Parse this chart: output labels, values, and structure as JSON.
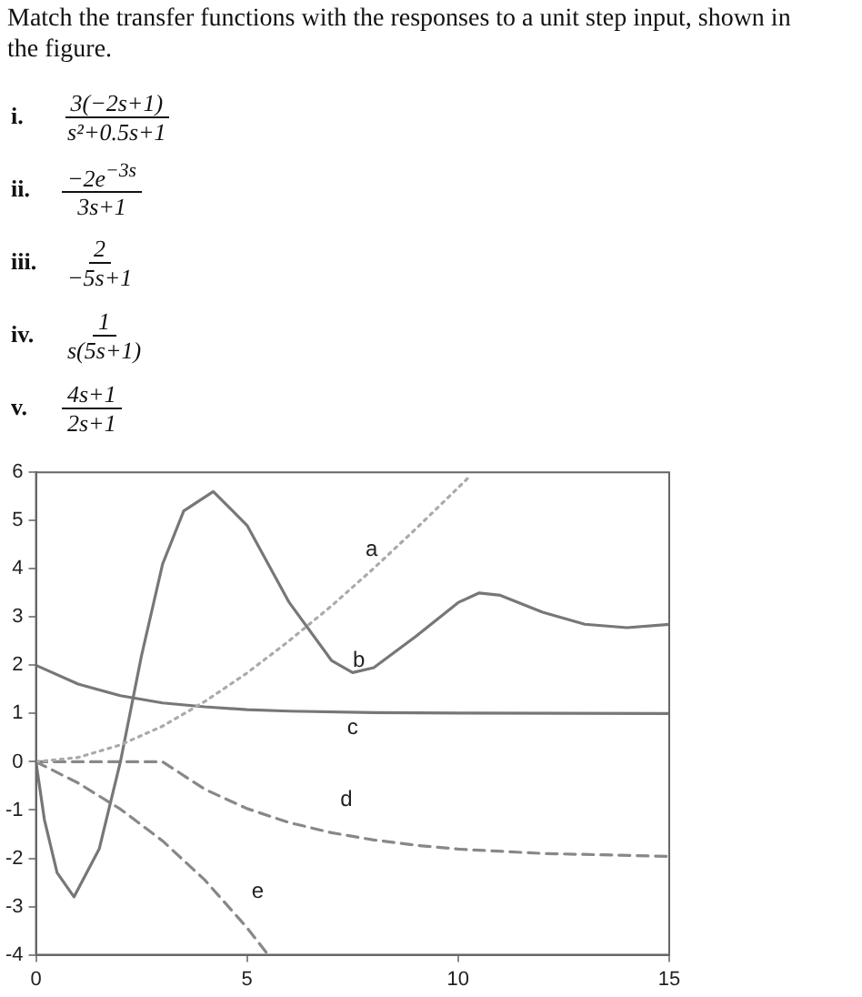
{
  "chart_data": {
    "type": "line",
    "title": "Match the transfer functions with the responses to a unit step input, shown in the figure.",
    "annotations": [
      "i.",
      "3(−2s+1)",
      "s²+0.5s+1",
      "ii.",
      "−2e$^{−3s}$",
      "3s+1",
      "iii.",
      "2",
      "−5s+1",
      "iv.",
      "1",
      "s(5s+1)",
      "v.",
      "4s+1",
      "2s+1"
    ],
    "series": [
      {
        "name": "a",
        "color": "#aaaaaa",
        "line_style": "dotted",
        "x": [
          0,
          1,
          2,
          3,
          4,
          5,
          6,
          7,
          8,
          9,
          10,
          10.3
        ],
        "values": [
          0,
          0.09,
          0.35,
          0.74,
          1.25,
          1.84,
          2.51,
          3.23,
          4.01,
          4.83,
          5.68,
          5.94
        ]
      },
      {
        "name": "b",
        "color": "#777777",
        "line_style": "solid",
        "x": [
          0,
          0.2,
          0.5,
          0.9,
          1.5,
          2,
          2.5,
          3,
          3.5,
          4.2,
          5,
          6,
          7,
          7.5,
          8,
          9,
          10,
          10.5,
          11,
          12,
          13,
          14,
          15
        ],
        "values": [
          0,
          -1.2,
          -2.3,
          -2.8,
          -1.8,
          0,
          2.2,
          4.1,
          5.2,
          5.6,
          4.9,
          3.3,
          2.1,
          1.85,
          1.95,
          2.6,
          3.3,
          3.5,
          3.45,
          3.1,
          2.85,
          2.78,
          2.85
        ]
      },
      {
        "name": "c",
        "color": "#777777",
        "line_style": "solid",
        "x": [
          0,
          1,
          2,
          3,
          4,
          5,
          6,
          8,
          10,
          15
        ],
        "values": [
          2,
          1.61,
          1.37,
          1.22,
          1.14,
          1.08,
          1.05,
          1.02,
          1.01,
          1
        ]
      },
      {
        "name": "d",
        "color": "#888888",
        "line_style": "dashed",
        "x": [
          0,
          3,
          4,
          5,
          6,
          7,
          8,
          9,
          10,
          12,
          15
        ],
        "values": [
          0,
          0,
          -0.57,
          -0.97,
          -1.26,
          -1.47,
          -1.62,
          -1.73,
          -1.81,
          -1.9,
          -1.96
        ]
      },
      {
        "name": "e",
        "color": "#888888",
        "line_style": "dashed",
        "x": [
          0,
          1,
          2,
          3,
          4,
          5,
          5.5
        ],
        "values": [
          0,
          -0.44,
          -0.98,
          -1.64,
          -2.45,
          -3.44,
          -4
        ]
      }
    ],
    "xlim": [
      0,
      15
    ],
    "xticks": [
      0,
      5,
      10,
      15
    ],
    "ylim": [
      -4,
      6
    ],
    "yticks": [
      -4,
      -3,
      -2,
      -1,
      0,
      1,
      2,
      3,
      4,
      5,
      6
    ],
    "grid": false,
    "legend": false,
    "marker": "none"
  }
}
